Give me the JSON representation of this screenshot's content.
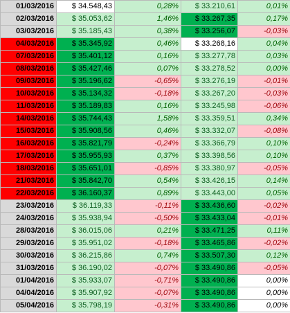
{
  "rows": [
    {
      "date": "01/03/2016",
      "v1": "$ 34.548,43",
      "p1": "0,28%",
      "v2": "$ 33.210,61",
      "p2": "0,01%"
    },
    {
      "date": "02/03/2016",
      "v1": "$ 35.053,62",
      "p1": "1,46%",
      "v2": "$ 33.267,35",
      "p2": "0,17%"
    },
    {
      "date": "03/03/2016",
      "v1": "$ 35.185,43",
      "p1": "0,38%",
      "v2": "$ 33.256,07",
      "p2": "-0,03%"
    },
    {
      "date": "04/03/2016",
      "v1": "$ 35.345,92",
      "p1": "0,46%",
      "v2": "$ 33.268,16",
      "p2": "0,04%"
    },
    {
      "date": "07/03/2016",
      "v1": "$ 35.401,12",
      "p1": "0,16%",
      "v2": "$ 33.277,78",
      "p2": "0,03%"
    },
    {
      "date": "08/03/2016",
      "v1": "$ 35.427,46",
      "p1": "0,07%",
      "v2": "$ 33.278,52",
      "p2": "0,00%"
    },
    {
      "date": "09/03/2016",
      "v1": "$ 35.196,62",
      "p1": "-0,65%",
      "v2": "$ 33.276,19",
      "p2": "-0,01%"
    },
    {
      "date": "10/03/2016",
      "v1": "$ 35.134,32",
      "p1": "-0,18%",
      "v2": "$ 33.267,20",
      "p2": "-0,03%"
    },
    {
      "date": "11/03/2016",
      "v1": "$ 35.189,83",
      "p1": "0,16%",
      "v2": "$ 33.245,98",
      "p2": "-0,06%"
    },
    {
      "date": "14/03/2016",
      "v1": "$ 35.744,43",
      "p1": "1,58%",
      "v2": "$ 33.359,51",
      "p2": "0,34%"
    },
    {
      "date": "15/03/2016",
      "v1": "$ 35.908,56",
      "p1": "0,46%",
      "v2": "$ 33.332,07",
      "p2": "-0,08%"
    },
    {
      "date": "16/03/2016",
      "v1": "$ 35.821,79",
      "p1": "-0,24%",
      "v2": "$ 33.366,79",
      "p2": "0,10%"
    },
    {
      "date": "17/03/2016",
      "v1": "$ 35.955,93",
      "p1": "0,37%",
      "v2": "$ 33.398,56",
      "p2": "0,10%"
    },
    {
      "date": "18/03/2016",
      "v1": "$ 35.651,01",
      "p1": "-0,85%",
      "v2": "$ 33.380,97",
      "p2": "-0,05%"
    },
    {
      "date": "21/03/2016",
      "v1": "$ 35.842,70",
      "p1": "0,54%",
      "v2": "$ 33.426,15",
      "p2": "0,14%"
    },
    {
      "date": "22/03/2016",
      "v1": "$ 36.160,37",
      "p1": "0,89%",
      "v2": "$ 33.443,00",
      "p2": "0,05%"
    },
    {
      "date": "23/03/2016",
      "v1": "$ 36.119,33",
      "p1": "-0,11%",
      "v2": "$ 33.436,60",
      "p2": "-0,02%"
    },
    {
      "date": "24/03/2016",
      "v1": "$ 35.938,94",
      "p1": "-0,50%",
      "v2": "$ 33.433,04",
      "p2": "-0,01%"
    },
    {
      "date": "28/03/2016",
      "v1": "$ 36.015,06",
      "p1": "0,21%",
      "v2": "$ 33.471,25",
      "p2": "0,11%"
    },
    {
      "date": "29/03/2016",
      "v1": "$ 35.951,02",
      "p1": "-0,18%",
      "v2": "$ 33.465,86",
      "p2": "-0,02%"
    },
    {
      "date": "30/03/2016",
      "v1": "$ 36.215,86",
      "p1": "0,74%",
      "v2": "$ 33.507,30",
      "p2": "0,12%"
    },
    {
      "date": "31/03/2016",
      "v1": "$ 36.190,02",
      "p1": "-0,07%",
      "v2": "$ 33.490,86",
      "p2": "-0,05%"
    },
    {
      "date": "01/04/2016",
      "v1": "$ 35.933,07",
      "p1": "-0,71%",
      "v2": "$ 33.490,86",
      "p2": "0,00%"
    },
    {
      "date": "04/04/2016",
      "v1": "$ 35.907,92",
      "p1": "-0,07%",
      "v2": "$ 33.490,86",
      "p2": "0,00%"
    },
    {
      "date": "05/04/2016",
      "v1": "$ 35.798,19",
      "p1": "-0,31%",
      "v2": "$ 33.490,86",
      "p2": "0,00%"
    }
  ],
  "colors": {
    "date_gray": "#d9d9d9",
    "date_red": "#ff0000",
    "dark_green": "#00b050",
    "light_green": "#c6efce",
    "light_red": "#ffc7ce",
    "white": "#ffffff"
  }
}
